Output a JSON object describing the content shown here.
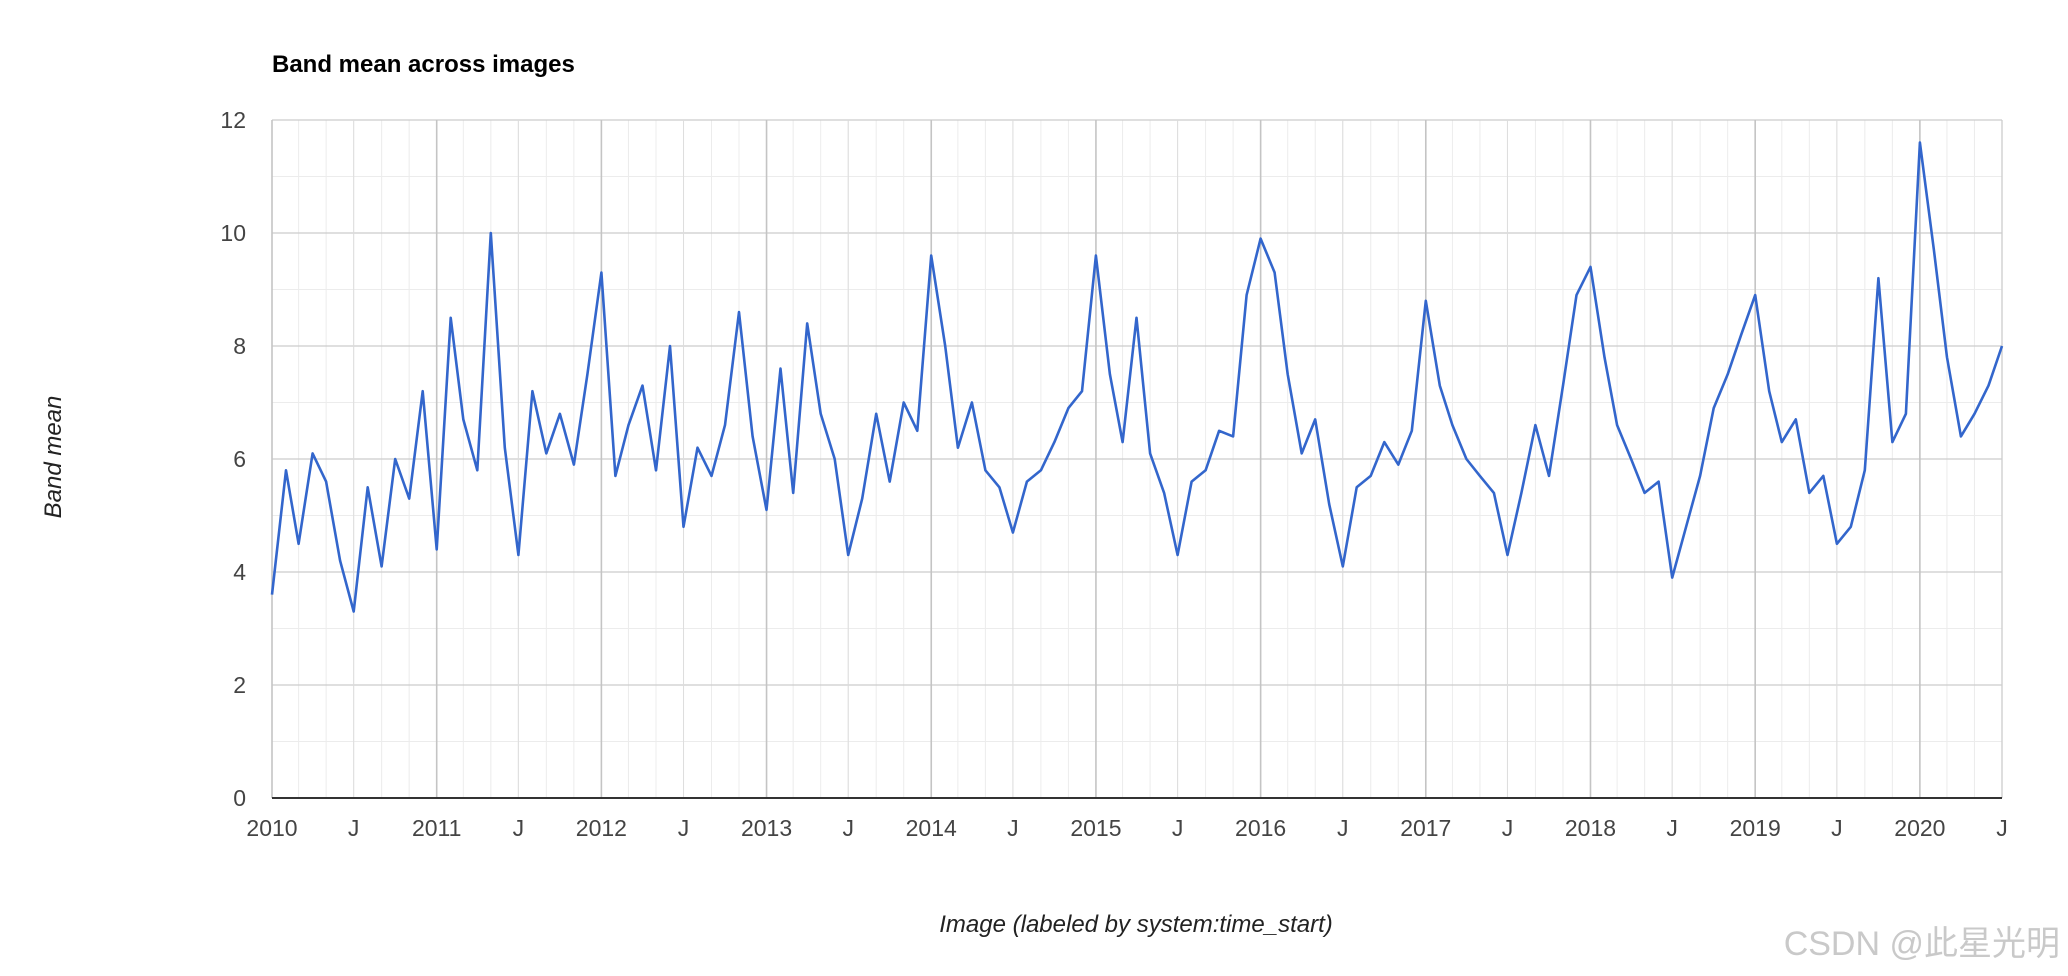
{
  "chart_data": {
    "type": "line",
    "title": "Band mean across images",
    "xlabel": "Image (labeled by system:time_start)",
    "ylabel": "Band mean",
    "x_range": [
      "2010-01-01",
      "2020-07-01"
    ],
    "ylim": [
      0,
      12
    ],
    "y_ticks": [
      0,
      2,
      4,
      6,
      8,
      10,
      12
    ],
    "x_ticks": [
      {
        "date": "2010-01-01",
        "label": "2010"
      },
      {
        "date": "2010-07-01",
        "label": "J"
      },
      {
        "date": "2011-01-01",
        "label": "2011"
      },
      {
        "date": "2011-07-01",
        "label": "J"
      },
      {
        "date": "2012-01-01",
        "label": "2012"
      },
      {
        "date": "2012-07-01",
        "label": "J"
      },
      {
        "date": "2013-01-01",
        "label": "2013"
      },
      {
        "date": "2013-07-01",
        "label": "J"
      },
      {
        "date": "2014-01-01",
        "label": "2014"
      },
      {
        "date": "2014-07-01",
        "label": "J"
      },
      {
        "date": "2015-01-01",
        "label": "2015"
      },
      {
        "date": "2015-07-01",
        "label": "J"
      },
      {
        "date": "2016-01-01",
        "label": "2016"
      },
      {
        "date": "2016-07-01",
        "label": "J"
      },
      {
        "date": "2017-01-01",
        "label": "2017"
      },
      {
        "date": "2017-07-01",
        "label": "J"
      },
      {
        "date": "2018-01-01",
        "label": "2018"
      },
      {
        "date": "2018-07-01",
        "label": "J"
      },
      {
        "date": "2019-01-01",
        "label": "2019"
      },
      {
        "date": "2019-07-01",
        "label": "J"
      },
      {
        "date": "2020-01-01",
        "label": "2020"
      },
      {
        "date": "2020-07-01",
        "label": "J"
      }
    ],
    "grid": true,
    "legend": "none",
    "line_color": "#3366cc",
    "series": [
      {
        "x": [
          "2010-01-01",
          "2010-02-01",
          "2010-03-01",
          "2010-04-01",
          "2010-05-01",
          "2010-06-01",
          "2010-07-01",
          "2010-08-01",
          "2010-09-01",
          "2010-10-01",
          "2010-11-01",
          "2010-12-01",
          "2011-01-01",
          "2011-02-01",
          "2011-03-01",
          "2011-04-01",
          "2011-05-01",
          "2011-06-01",
          "2011-07-01",
          "2011-08-01",
          "2011-09-01",
          "2011-10-01",
          "2011-11-01",
          "2011-12-01",
          "2012-01-01",
          "2012-02-01",
          "2012-03-01",
          "2012-04-01",
          "2012-05-01",
          "2012-06-01",
          "2012-07-01",
          "2012-08-01",
          "2012-09-01",
          "2012-10-01",
          "2012-11-01",
          "2012-12-01",
          "2013-01-01",
          "2013-02-01",
          "2013-03-01",
          "2013-04-01",
          "2013-05-01",
          "2013-06-01",
          "2013-07-01",
          "2013-08-01",
          "2013-09-01",
          "2013-10-01",
          "2013-11-01",
          "2013-12-01",
          "2014-01-01",
          "2014-02-01",
          "2014-03-01",
          "2014-04-01",
          "2014-05-01",
          "2014-06-01",
          "2014-07-01",
          "2014-08-01",
          "2014-09-01",
          "2014-10-01",
          "2014-11-01",
          "2014-12-01",
          "2015-01-01",
          "2015-02-01",
          "2015-03-01",
          "2015-04-01",
          "2015-05-01",
          "2015-06-01",
          "2015-07-01",
          "2015-08-01",
          "2015-09-01",
          "2015-10-01",
          "2015-11-01",
          "2015-12-01",
          "2016-01-01",
          "2016-02-01",
          "2016-03-01",
          "2016-04-01",
          "2016-05-01",
          "2016-06-01",
          "2016-07-01",
          "2016-08-01",
          "2016-09-01",
          "2016-10-01",
          "2016-11-01",
          "2016-12-01",
          "2017-01-01",
          "2017-02-01",
          "2017-03-01",
          "2017-04-01",
          "2017-05-01",
          "2017-06-01",
          "2017-07-01",
          "2017-08-01",
          "2017-09-01",
          "2017-10-01",
          "2017-11-01",
          "2017-12-01",
          "2018-01-01",
          "2018-02-01",
          "2018-03-01",
          "2018-04-01",
          "2018-05-01",
          "2018-06-01",
          "2018-07-01",
          "2018-08-01",
          "2018-09-01",
          "2018-10-01",
          "2018-11-01",
          "2018-12-01",
          "2019-01-01",
          "2019-02-01",
          "2019-03-01",
          "2019-04-01",
          "2019-05-01",
          "2019-06-01",
          "2019-07-01",
          "2019-08-01",
          "2019-09-01",
          "2019-10-01",
          "2019-11-01",
          "2019-12-01",
          "2020-01-01",
          "2020-02-01",
          "2020-03-01",
          "2020-04-01",
          "2020-05-01",
          "2020-06-01",
          "2020-07-01"
        ],
        "values": [
          3.6,
          5.8,
          4.5,
          6.1,
          5.6,
          4.2,
          3.3,
          5.5,
          4.1,
          6.0,
          5.3,
          7.2,
          4.4,
          8.5,
          6.7,
          5.8,
          10.0,
          6.2,
          4.3,
          7.2,
          6.1,
          6.8,
          5.9,
          7.5,
          9.3,
          5.7,
          6.6,
          7.3,
          5.8,
          8.0,
          4.8,
          6.2,
          5.7,
          6.6,
          8.6,
          6.4,
          5.1,
          7.6,
          5.4,
          8.4,
          6.8,
          6.0,
          4.3,
          5.3,
          6.8,
          5.6,
          7.0,
          6.5,
          9.6,
          8.0,
          6.2,
          7.0,
          5.8,
          5.5,
          4.7,
          5.6,
          5.8,
          6.3,
          6.9,
          7.2,
          9.6,
          7.5,
          6.3,
          8.5,
          6.1,
          5.4,
          4.3,
          5.6,
          5.8,
          6.5,
          6.4,
          8.9,
          9.9,
          9.3,
          7.5,
          6.1,
          6.7,
          5.2,
          4.1,
          5.5,
          5.7,
          6.3,
          5.9,
          6.5,
          8.8,
          7.3,
          6.6,
          6.0,
          5.7,
          5.4,
          4.3,
          5.4,
          6.6,
          5.7,
          7.3,
          8.9,
          9.4,
          7.8,
          6.6,
          6.0,
          5.4,
          5.6,
          3.9,
          4.8,
          5.7,
          6.9,
          7.5,
          8.2,
          8.9,
          7.2,
          6.3,
          6.7,
          5.4,
          5.7,
          4.5,
          4.8,
          5.8,
          9.2,
          6.3,
          6.8,
          11.6,
          9.7,
          7.8,
          6.4,
          6.8,
          7.3,
          8.0
        ]
      }
    ]
  },
  "watermark": {
    "text": "CSDN @此星光明"
  }
}
